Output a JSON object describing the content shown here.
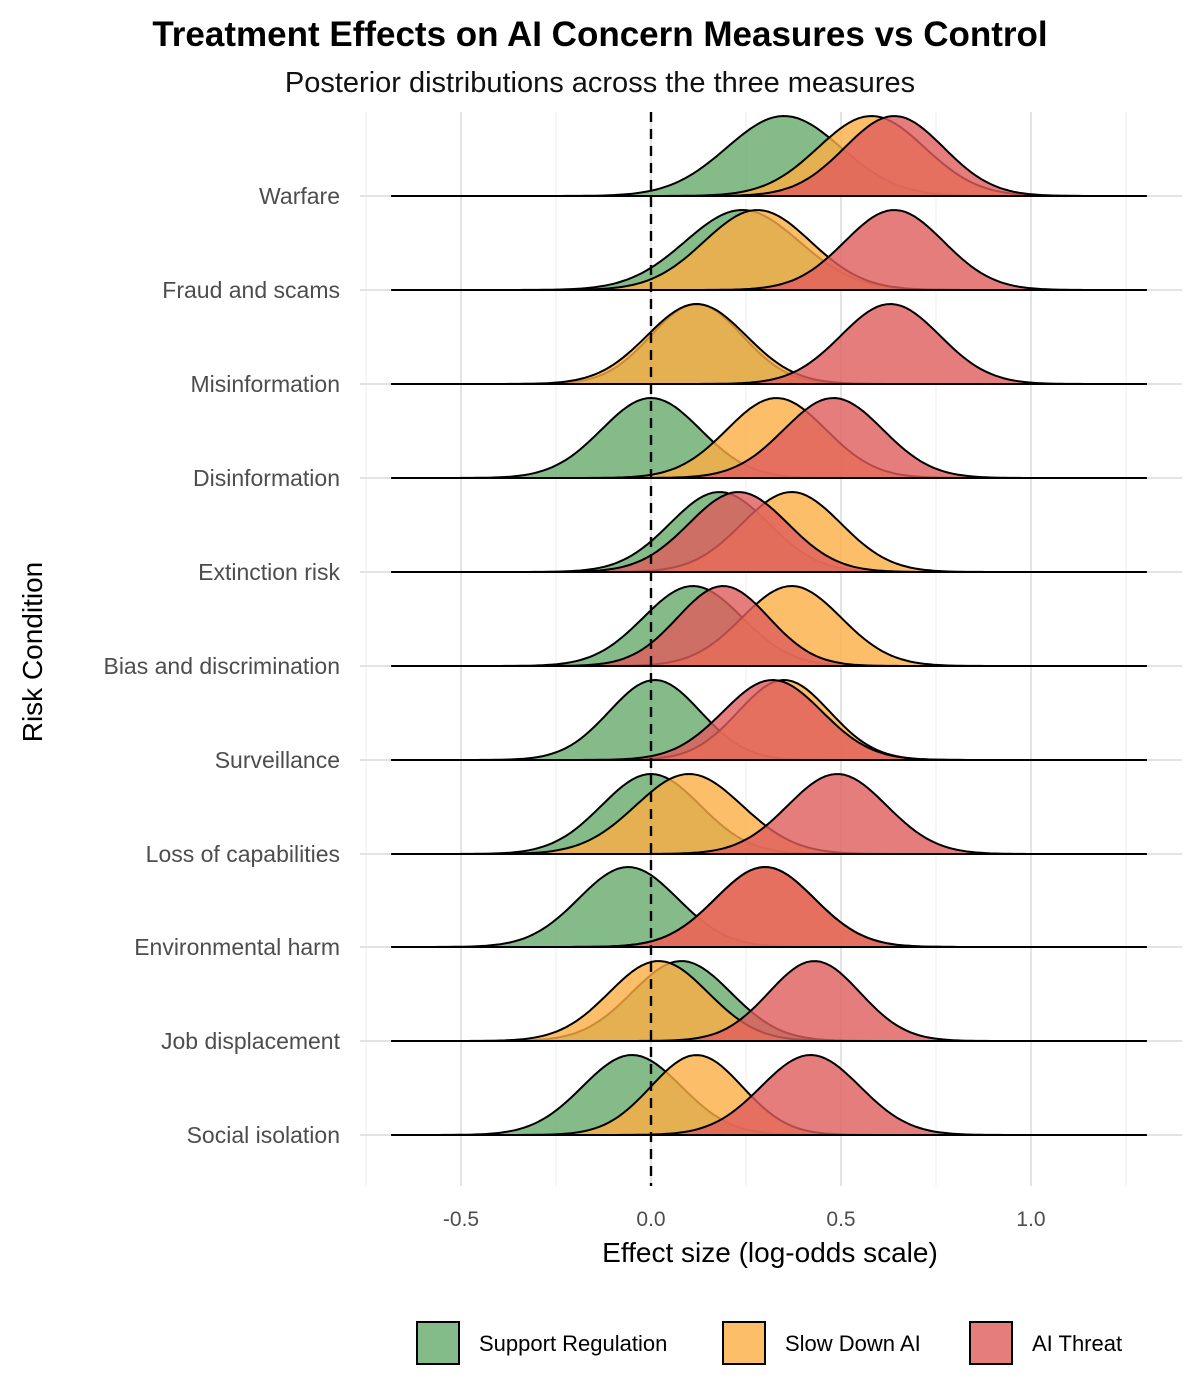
{
  "chart_data": {
    "type": "ridgeline",
    "title": "Treatment Effects on AI Concern Measures vs Control",
    "subtitle": "Posterior distributions across the three measures",
    "xlabel": "Effect size (log-odds scale)",
    "ylabel": "Risk Condition",
    "xlim": [
      -0.75,
      1.4
    ],
    "x_ticks": [
      "-0.5",
      "0.0",
      "0.5",
      "1.0"
    ],
    "x_tick_values": [
      -0.5,
      0.0,
      0.5,
      1.0
    ],
    "reference_line": 0,
    "categories": [
      "Warfare",
      "Fraud and scams",
      "Misinformation",
      "Disinformation",
      "Extinction risk",
      "Bias and discrimination",
      "Surveillance",
      "Loss of capabilities",
      "Environmental harm",
      "Job displacement",
      "Social isolation"
    ],
    "series": [
      {
        "name": "Support Regulation",
        "color": "#66a96b",
        "means": [
          0.35,
          0.24,
          0.12,
          0.0,
          0.18,
          0.11,
          0.01,
          0.0,
          -0.06,
          0.08,
          -0.05
        ],
        "sds": [
          0.15,
          0.15,
          0.12,
          0.13,
          0.13,
          0.13,
          0.12,
          0.13,
          0.13,
          0.13,
          0.13
        ]
      },
      {
        "name": "Slow Down AI",
        "color": "#fdae45",
        "means": [
          0.58,
          0.28,
          0.12,
          0.33,
          0.37,
          0.37,
          0.35,
          0.1,
          0.3,
          0.02,
          0.12
        ],
        "sds": [
          0.14,
          0.14,
          0.13,
          0.13,
          0.13,
          0.13,
          0.12,
          0.14,
          0.13,
          0.13,
          0.12
        ]
      },
      {
        "name": "AI Threat",
        "color": "#e05c5c",
        "means": [
          0.64,
          0.64,
          0.63,
          0.48,
          0.23,
          0.19,
          0.32,
          0.49,
          0.3,
          0.43,
          0.42
        ],
        "sds": [
          0.13,
          0.13,
          0.13,
          0.13,
          0.13,
          0.12,
          0.13,
          0.13,
          0.13,
          0.12,
          0.13
        ]
      }
    ],
    "grid": true,
    "legend_position": "bottom"
  }
}
